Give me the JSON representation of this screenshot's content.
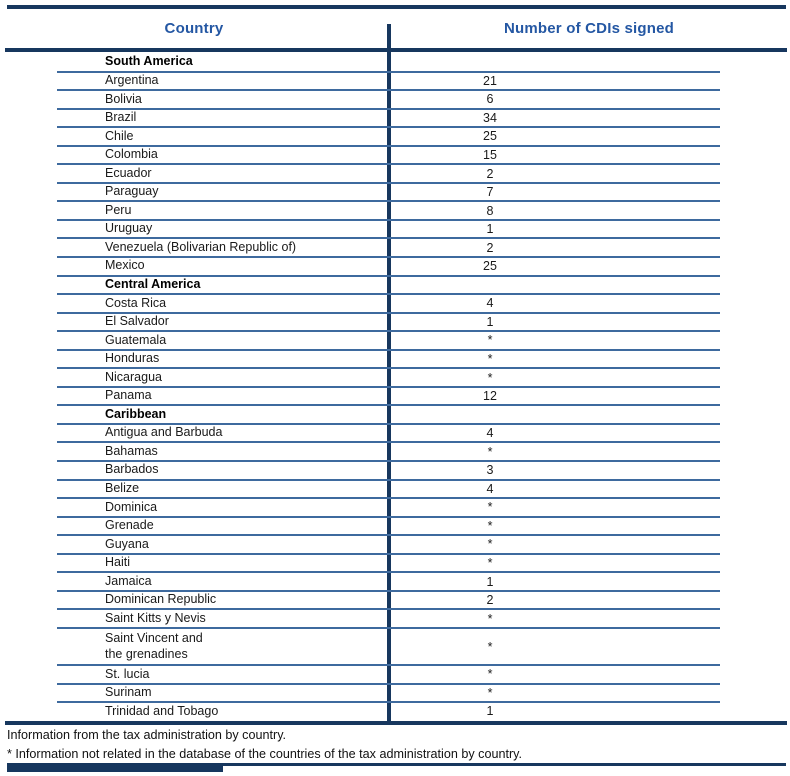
{
  "table": {
    "header": {
      "country_col": "Country",
      "value_col": "Number of CDIs signed"
    },
    "sections": [
      {
        "title": "South America",
        "rows": [
          {
            "country": "Argentina",
            "value": "21"
          },
          {
            "country": "Bolivia",
            "value": "6"
          },
          {
            "country": "Brazil",
            "value": "34"
          },
          {
            "country": "Chile",
            "value": "25"
          },
          {
            "country": "Colombia",
            "value": "15"
          },
          {
            "country": "Ecuador",
            "value": "2"
          },
          {
            "country": "Paraguay",
            "value": "7"
          },
          {
            "country": "Peru",
            "value": "8"
          },
          {
            "country": "Uruguay",
            "value": "1"
          },
          {
            "country": "Venezuela (Bolivarian Republic of)",
            "value": "2"
          },
          {
            "country": "Mexico",
            "value": "25"
          }
        ]
      },
      {
        "title": "Central America",
        "rows": [
          {
            "country": "Costa Rica",
            "value": "4"
          },
          {
            "country": "El Salvador",
            "value": "1"
          },
          {
            "country": "Guatemala",
            "value": "*"
          },
          {
            "country": "Honduras",
            "value": "*"
          },
          {
            "country": "Nicaragua",
            "value": "*"
          },
          {
            "country": "Panama",
            "value": "12"
          }
        ]
      },
      {
        "title": "Caribbean",
        "rows": [
          {
            "country": "Antigua and Barbuda",
            "value": "4"
          },
          {
            "country": "Bahamas",
            "value": "*"
          },
          {
            "country": "Barbados",
            "value": "3"
          },
          {
            "country": "Belize",
            "value": "4"
          },
          {
            "country": "Dominica",
            "value": "*"
          },
          {
            "country": "Grenade",
            "value": "*"
          },
          {
            "country": "Guyana",
            "value": "*"
          },
          {
            "country": "Haiti",
            "value": "*"
          },
          {
            "country": "Jamaica",
            "value": "1"
          },
          {
            "country": "Dominican Republic",
            "value": "2"
          },
          {
            "country": "Saint Kitts y Nevis",
            "value": "*"
          },
          {
            "country": "Saint Vincent and\nthe grenadines",
            "value": "*",
            "multiline": true
          },
          {
            "country": "St. lucia",
            "value": "*"
          },
          {
            "country": "Surinam",
            "value": "*"
          },
          {
            "country": "Trinidad and Tobago",
            "value": "1"
          }
        ]
      }
    ]
  },
  "footnotes": [
    "Information from the tax administration by country.",
    "* Information not related in the database of the countries of the tax administration by country."
  ],
  "colors": {
    "rule_dark": "#17375E",
    "row_line": "#3E6A9E",
    "header_text": "#2457A3",
    "body_text": "#1a1a1a"
  }
}
